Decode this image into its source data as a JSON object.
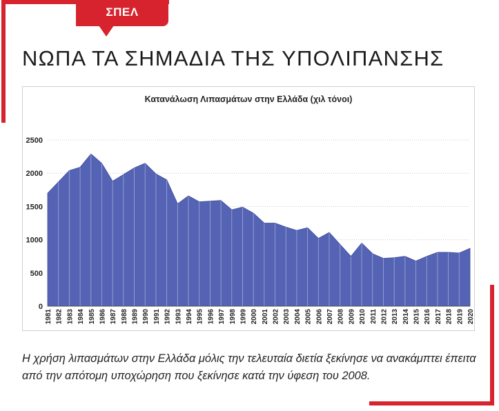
{
  "tag": {
    "label": "ΣΠΕΛ"
  },
  "headline": "ΝΩΠΑ ΤΑ ΣΗΜΑΔΙΑ ΤΗΣ ΥΠΟΛΙΠΑΝΣΗΣ",
  "caption": "Η χρήση λιπασμάτων στην Ελλάδα μόλις την τελευταία διετία ξεκίνησε να ανακάμπτει έπειτα από την απότομη υποχώρηση που ξεκίνησε κατά την ύφεση του 2008.",
  "colors": {
    "accent": "#d7232d",
    "series_fill": "#5563b4",
    "series_line": "#3b4a9a"
  },
  "chart_data": {
    "type": "area",
    "title": "Κατανάλωση Λιπασμάτων στην Ελλάδα (χιλ τόνοι)",
    "xlabel": "",
    "ylabel": "",
    "ylim": [
      0,
      2500
    ],
    "yticks": [
      0,
      500,
      1000,
      1500,
      2000,
      2500
    ],
    "grid": true,
    "x": [
      "1981",
      "1982",
      "1983",
      "1984",
      "1985",
      "1986",
      "1987",
      "1988",
      "1989",
      "1990",
      "1991",
      "1992",
      "1993",
      "1994",
      "1995",
      "1996",
      "1997",
      "1998",
      "1999",
      "2000",
      "2001",
      "2002",
      "2003",
      "2004",
      "2005",
      "2006",
      "2007",
      "2008",
      "2009",
      "2010",
      "2011",
      "2012",
      "2013",
      "2014",
      "2015",
      "2016",
      "2017",
      "2018",
      "2019",
      "2020"
    ],
    "series": [
      {
        "values": [
          1700,
          1870,
          2040,
          2090,
          2290,
          2150,
          1880,
          1980,
          2080,
          2150,
          1990,
          1900,
          1540,
          1660,
          1570,
          1580,
          1590,
          1450,
          1490,
          1400,
          1250,
          1250,
          1190,
          1140,
          1180,
          1020,
          1110,
          930,
          750,
          950,
          790,
          720,
          730,
          750,
          680,
          750,
          810,
          810,
          800,
          870
        ]
      }
    ]
  }
}
